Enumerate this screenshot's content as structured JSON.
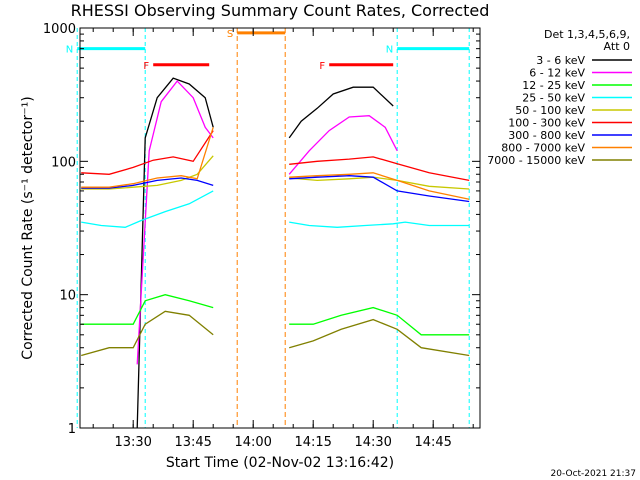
{
  "chart_data": {
    "type": "line",
    "title": "RHESSI Observing Summary Count Rates, Corrected",
    "xlabel": "Start Time (02-Nov-02 13:16:42)",
    "ylabel": "Corrected Count Rate (s⁻¹ detector⁻¹)",
    "y_scale": "log",
    "ylim": [
      1,
      1000
    ],
    "xlim": [
      "13:16:42",
      "14:56:42"
    ],
    "x_ticks": [
      "13:30",
      "13:45",
      "14:00",
      "14:15",
      "14:30",
      "14:45"
    ],
    "y_ticks": [
      "1",
      "10",
      "100",
      "1000"
    ],
    "legend_header": [
      "Det 1,3,4,5,6,9,",
      "Att 0"
    ],
    "legend_position": "right",
    "footer_timestamp": "20-Oct-2021 21:37",
    "data_gap": {
      "start": "13:55",
      "end": "14:09"
    },
    "flags": [
      {
        "label": "N",
        "color": "#00ffff",
        "start": "13:16",
        "end": "13:33",
        "level": 700
      },
      {
        "label": "N",
        "color": "#00ffff",
        "start": "14:36",
        "end": "14:54",
        "level": 700
      },
      {
        "label": "F",
        "color": "#ff0000",
        "start": "13:35",
        "end": "13:49",
        "level": 530
      },
      {
        "label": "F",
        "color": "#ff0000",
        "start": "14:19",
        "end": "14:35",
        "level": 530
      },
      {
        "label": "S",
        "color": "#ff8000",
        "start": "13:56",
        "end": "14:08",
        "level": 920
      }
    ],
    "series": [
      {
        "name": "3 - 6 keV",
        "color": "#000000",
        "x": [
          "13:31",
          "13:33",
          "13:36",
          "13:40",
          "13:44",
          "13:48",
          "13:50",
          "14:09",
          "14:12",
          "14:16",
          "14:20",
          "14:25",
          "14:30",
          "14:35"
        ],
        "values": [
          1,
          150,
          300,
          420,
          380,
          300,
          180,
          150,
          200,
          250,
          320,
          360,
          360,
          260
        ]
      },
      {
        "name": "6 - 12 keV",
        "color": "#ff00ff",
        "x": [
          "13:31",
          "13:34",
          "13:37",
          "13:41",
          "13:45",
          "13:48",
          "13:50",
          "14:09",
          "14:14",
          "14:19",
          "14:24",
          "14:29",
          "14:33",
          "14:36"
        ],
        "values": [
          3,
          120,
          280,
          400,
          300,
          180,
          150,
          80,
          120,
          170,
          215,
          220,
          180,
          120
        ]
      },
      {
        "name": "12 - 25 keV",
        "color": "#00ff00",
        "x": [
          "13:17",
          "13:24",
          "13:30",
          "13:33",
          "13:38",
          "13:44",
          "13:50",
          "14:09",
          "14:15",
          "14:22",
          "14:30",
          "14:36",
          "14:42",
          "14:54"
        ],
        "values": [
          6,
          6,
          6,
          9,
          10,
          9,
          8,
          6,
          6,
          7,
          8,
          7,
          5,
          5
        ]
      },
      {
        "name": "25 - 50 keV",
        "color": "#00ffff",
        "x": [
          "13:17",
          "13:22",
          "13:28",
          "13:32",
          "13:38",
          "13:44",
          "13:50",
          "14:09",
          "14:14",
          "14:21",
          "14:28",
          "14:35",
          "14:38",
          "14:44",
          "14:54"
        ],
        "values": [
          35,
          33,
          32,
          36,
          42,
          48,
          60,
          35,
          33,
          32,
          33,
          34,
          35,
          33,
          33
        ]
      },
      {
        "name": "50 - 100 keV",
        "color": "#c8c800",
        "x": [
          "13:17",
          "13:24",
          "13:30",
          "13:36",
          "13:42",
          "13:46",
          "13:50",
          "14:09",
          "14:16",
          "14:24",
          "14:30",
          "14:36",
          "14:44",
          "14:54"
        ],
        "values": [
          62,
          62,
          64,
          66,
          72,
          80,
          110,
          75,
          72,
          74,
          76,
          72,
          65,
          62
        ]
      },
      {
        "name": "100 - 300 keV",
        "color": "#ff0000",
        "x": [
          "13:17",
          "13:24",
          "13:30",
          "13:35",
          "13:40",
          "13:45",
          "13:50",
          "14:09",
          "14:16",
          "14:24",
          "14:30",
          "14:36",
          "14:44",
          "14:54"
        ],
        "values": [
          82,
          80,
          90,
          102,
          108,
          100,
          170,
          95,
          100,
          104,
          108,
          96,
          82,
          72
        ]
      },
      {
        "name": "300 - 800 keV",
        "color": "#0000ff",
        "x": [
          "13:17",
          "13:24",
          "13:30",
          "13:36",
          "13:42",
          "13:46",
          "13:50",
          "14:09",
          "14:16",
          "14:24",
          "14:30",
          "14:36",
          "14:44",
          "14:54"
        ],
        "values": [
          63,
          63,
          66,
          72,
          75,
          72,
          66,
          74,
          76,
          78,
          76,
          60,
          55,
          50
        ]
      },
      {
        "name": "800 - 7000 keV",
        "color": "#ff8000",
        "x": [
          "13:17",
          "13:24",
          "13:30",
          "13:36",
          "13:42",
          "13:46",
          "13:50",
          "14:09",
          "14:16",
          "14:24",
          "14:30",
          "14:36",
          "14:44",
          "14:54"
        ],
        "values": [
          64,
          64,
          68,
          75,
          78,
          74,
          180,
          76,
          78,
          80,
          82,
          72,
          60,
          52
        ]
      },
      {
        "name": "7000 - 15000 keV",
        "color": "#808000",
        "x": [
          "13:17",
          "13:24",
          "13:30",
          "13:33",
          "13:38",
          "13:44",
          "13:50",
          "14:09",
          "14:15",
          "14:22",
          "14:30",
          "14:36",
          "14:42",
          "14:54"
        ],
        "values": [
          3.5,
          4,
          4,
          6,
          7.5,
          7,
          5,
          4,
          4.5,
          5.5,
          6.5,
          5.5,
          4,
          3.5
        ]
      }
    ]
  }
}
